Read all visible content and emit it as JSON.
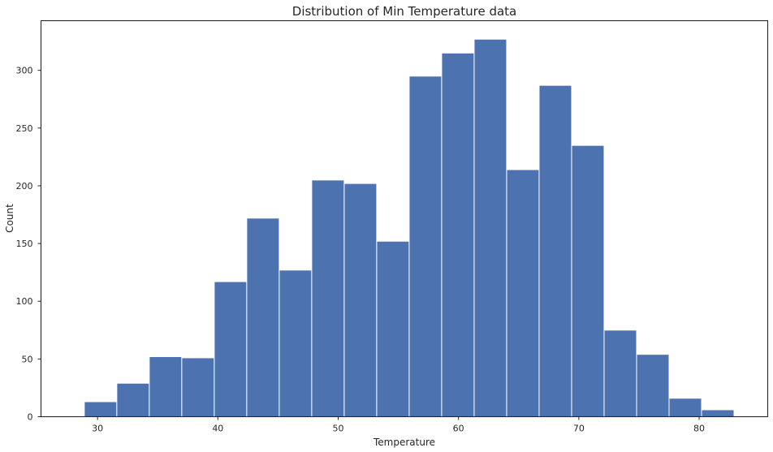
{
  "chart_data": {
    "type": "bar",
    "subtype": "histogram",
    "title": "Distribution of Min Temperature data",
    "xlabel": "Temperature",
    "ylabel": "Count",
    "xlim": [
      25.3,
      85.7
    ],
    "ylim": [
      0,
      343
    ],
    "xticks": [
      30,
      40,
      50,
      60,
      70,
      80
    ],
    "yticks": [
      0,
      50,
      100,
      150,
      200,
      250,
      300
    ],
    "grid": false,
    "bar_color": "#4C72B0",
    "bin_edges": [
      28.9,
      31.6,
      34.3,
      37.0,
      39.7,
      42.4,
      45.1,
      47.8,
      50.5,
      53.2,
      55.9,
      58.6,
      61.3,
      64.0,
      66.7,
      69.4,
      72.1,
      74.8,
      77.5,
      80.2,
      82.9
    ],
    "values": [
      13,
      29,
      52,
      51,
      117,
      172,
      127,
      205,
      202,
      152,
      295,
      315,
      327,
      214,
      287,
      235,
      75,
      54,
      16,
      6
    ]
  }
}
